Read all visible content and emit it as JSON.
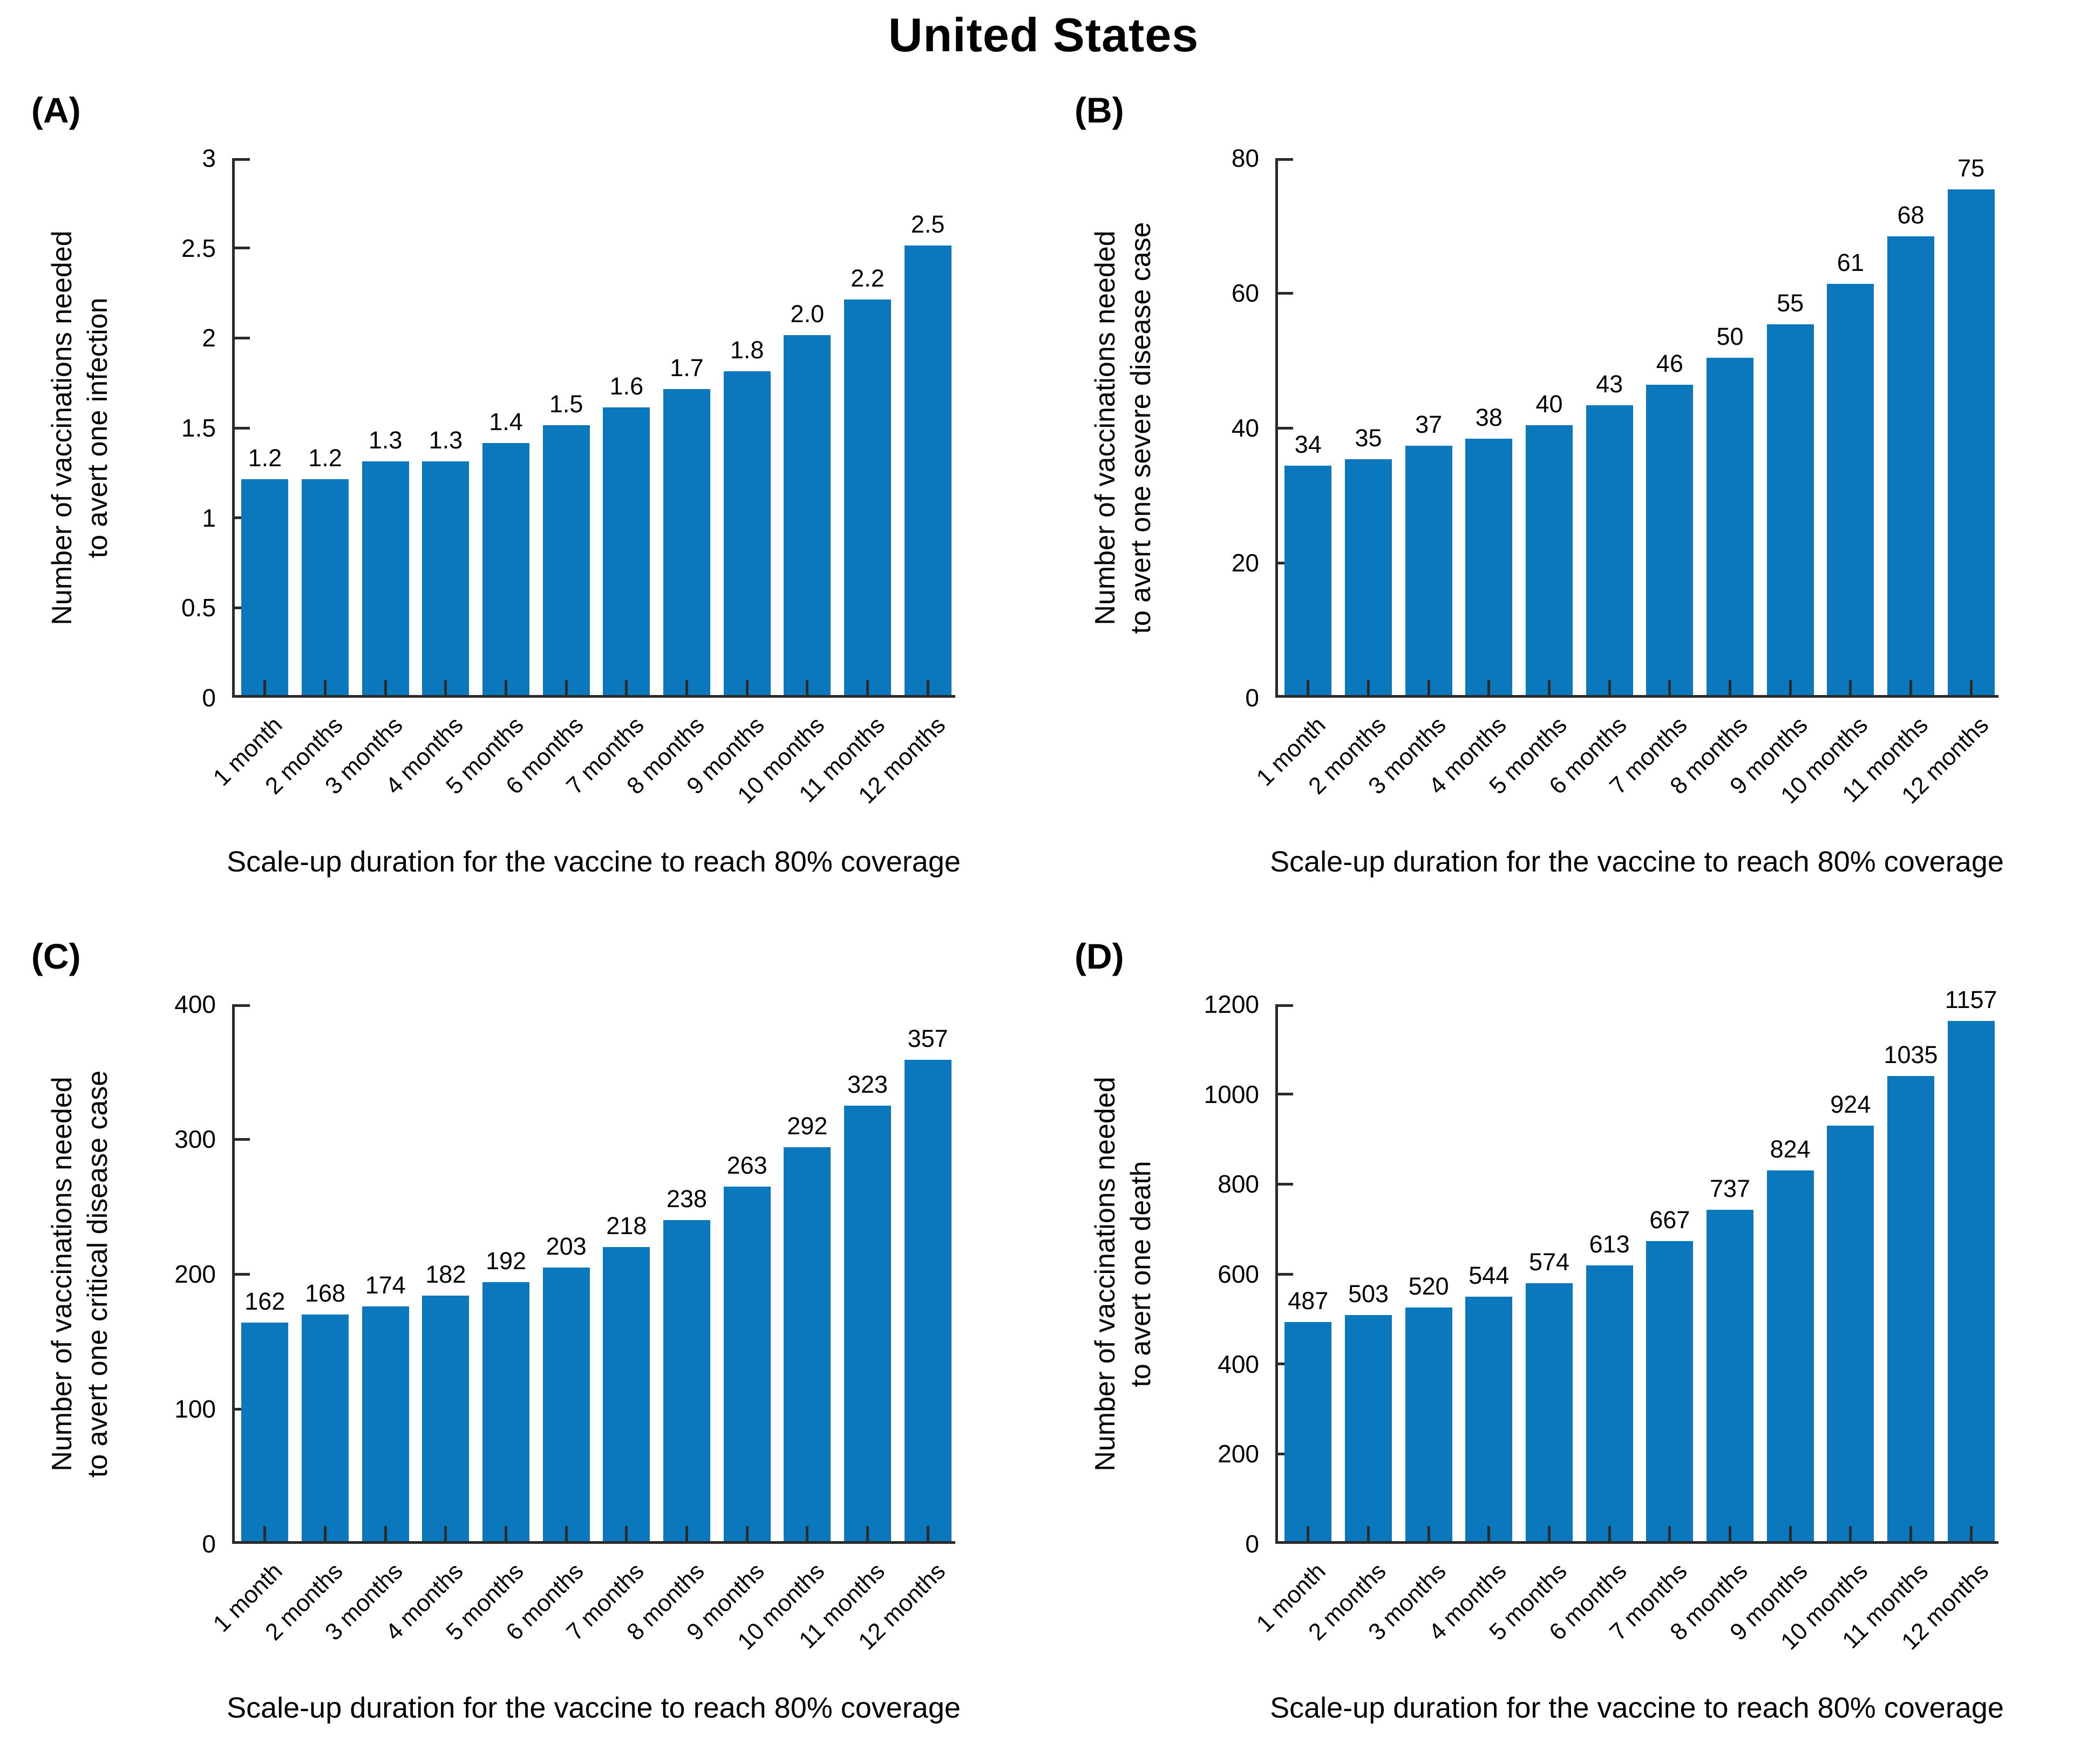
{
  "title": "United States",
  "colors": {
    "bar": "#0b78be",
    "axis": "#2b2b2b",
    "text": "#000000"
  },
  "chart_data": [
    {
      "type": "bar",
      "panel": "(A)",
      "title": "",
      "ylabel_lines": [
        "Number of vaccinations needed",
        "to avert one infection"
      ],
      "xlabel": "Scale-up duration for the vaccine to reach 80% coverage",
      "categories": [
        "1 month",
        "2 months",
        "3 months",
        "4 months",
        "5 months",
        "6 months",
        "7 months",
        "8 months",
        "9 months",
        "10 months",
        "11 months",
        "12 months"
      ],
      "values": [
        1.2,
        1.2,
        1.3,
        1.3,
        1.4,
        1.5,
        1.6,
        1.7,
        1.8,
        2.0,
        2.2,
        2.5
      ],
      "value_labels": [
        "1.2",
        "1.2",
        "1.3",
        "1.3",
        "1.4",
        "1.5",
        "1.6",
        "1.7",
        "1.8",
        "2.0",
        "2.2",
        "2.5"
      ],
      "ylim": [
        0,
        3
      ],
      "yticks": [
        0,
        0.5,
        1,
        1.5,
        2,
        2.5,
        3
      ],
      "ytick_labels": [
        "0",
        "0.5",
        "1",
        "1.5",
        "2",
        "2.5",
        "3"
      ],
      "grid": false,
      "legend": null,
      "bar_width_fraction": 0.78
    },
    {
      "type": "bar",
      "panel": "(B)",
      "title": "",
      "ylabel_lines": [
        "Number of vaccinations needed",
        "to avert one severe disease case"
      ],
      "xlabel": "Scale-up duration for the vaccine to reach 80% coverage",
      "categories": [
        "1 month",
        "2 months",
        "3 months",
        "4 months",
        "5 months",
        "6 months",
        "7 months",
        "8 months",
        "9 months",
        "10 months",
        "11 months",
        "12 months"
      ],
      "values": [
        34,
        35,
        37,
        38,
        40,
        43,
        46,
        50,
        55,
        61,
        68,
        75
      ],
      "value_labels": [
        "34",
        "35",
        "37",
        "38",
        "40",
        "43",
        "46",
        "50",
        "55",
        "61",
        "68",
        "75"
      ],
      "ylim": [
        0,
        80
      ],
      "yticks": [
        0,
        20,
        40,
        60,
        80
      ],
      "ytick_labels": [
        "0",
        "20",
        "40",
        "60",
        "80"
      ],
      "grid": false,
      "legend": null,
      "bar_width_fraction": 0.78
    },
    {
      "type": "bar",
      "panel": "(C)",
      "title": "",
      "ylabel_lines": [
        "Number of vaccinations needed",
        "to avert one critical disease case"
      ],
      "xlabel": "Scale-up duration for the vaccine to reach 80% coverage",
      "categories": [
        "1 month",
        "2 months",
        "3 months",
        "4 months",
        "5 months",
        "6 months",
        "7 months",
        "8 months",
        "9 months",
        "10 months",
        "11 months",
        "12 months"
      ],
      "values": [
        162,
        168,
        174,
        182,
        192,
        203,
        218,
        238,
        263,
        292,
        323,
        357
      ],
      "value_labels": [
        "162",
        "168",
        "174",
        "182",
        "192",
        "203",
        "218",
        "238",
        "263",
        "292",
        "323",
        "357"
      ],
      "ylim": [
        0,
        400
      ],
      "yticks": [
        0,
        100,
        200,
        300,
        400
      ],
      "ytick_labels": [
        "0",
        "100",
        "200",
        "300",
        "400"
      ],
      "grid": false,
      "legend": null,
      "bar_width_fraction": 0.78
    },
    {
      "type": "bar",
      "panel": "(D)",
      "title": "",
      "ylabel_lines": [
        "Number of vaccinations needed",
        "to avert one death"
      ],
      "xlabel": "Scale-up duration for the vaccine to reach 80% coverage",
      "categories": [
        "1 month",
        "2 months",
        "3 months",
        "4 months",
        "5 months",
        "6 months",
        "7 months",
        "8 months",
        "9 months",
        "10 months",
        "11 months",
        "12 months"
      ],
      "values": [
        487,
        503,
        520,
        544,
        574,
        613,
        667,
        737,
        824,
        924,
        1035,
        1157
      ],
      "value_labels": [
        "487",
        "503",
        "520",
        "544",
        "574",
        "613",
        "667",
        "737",
        "824",
        "924",
        "1035",
        "1157"
      ],
      "ylim": [
        0,
        1200
      ],
      "yticks": [
        0,
        200,
        400,
        600,
        800,
        1000,
        1200
      ],
      "ytick_labels": [
        "0",
        "200",
        "400",
        "600",
        "800",
        "1000",
        "1200"
      ],
      "grid": false,
      "legend": null,
      "bar_width_fraction": 0.78
    }
  ]
}
